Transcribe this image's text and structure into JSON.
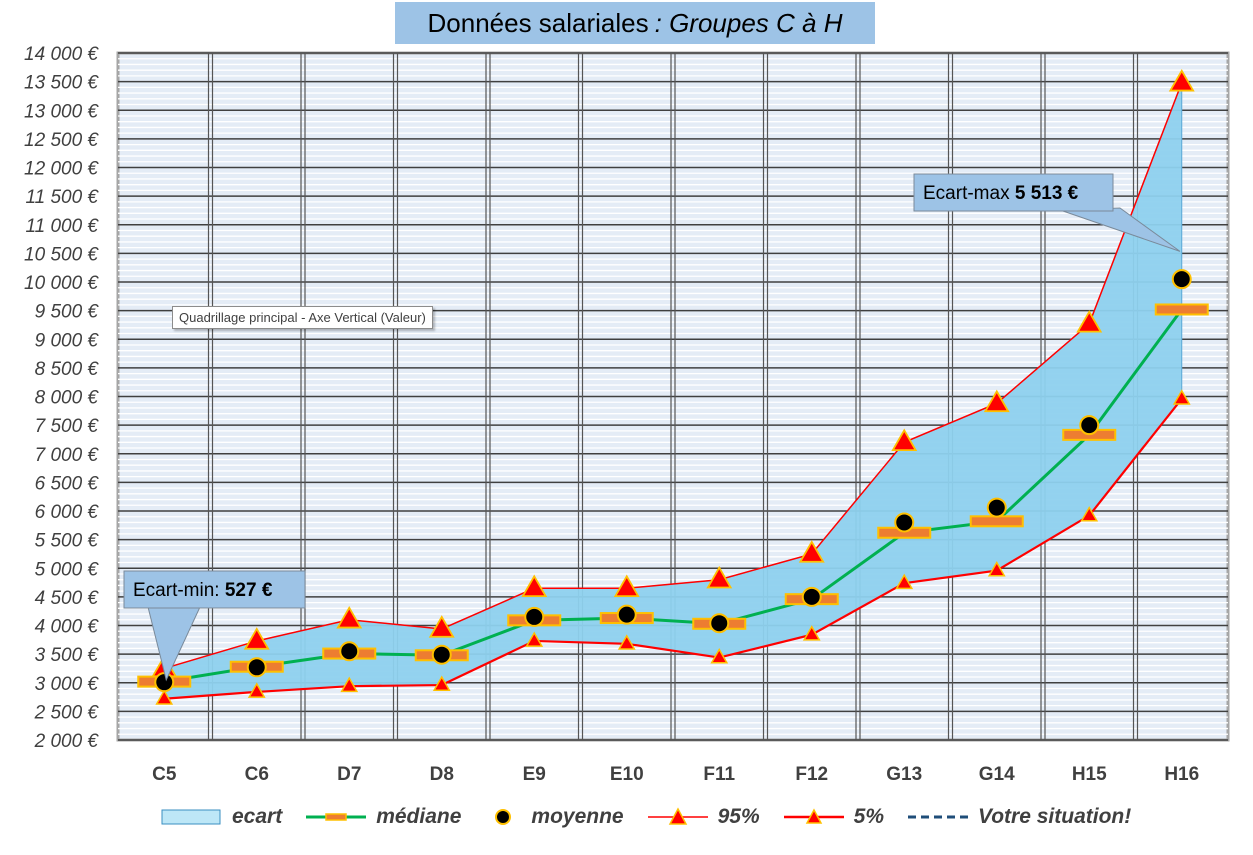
{
  "title": {
    "main": "Données salariales",
    "italic": ": Groupes C à H"
  },
  "tooltip": "Quadrillage principal - Axe Vertical (Valeur)",
  "annotations": {
    "min": {
      "label": "Ecart-min: ",
      "value": "527 €"
    },
    "max": {
      "label": "Ecart-max  ",
      "value": "5 513 €"
    }
  },
  "legend": [
    "ecart",
    "médiane",
    "moyenne",
    "95%",
    "5%",
    "Votre situation!"
  ],
  "colors": {
    "band": "#8ed1ee",
    "median": "#00b050",
    "p95": "#ff0000",
    "p5": "#ff0000",
    "marker_fill": "#ff0000",
    "marker_edge": "#ffc000",
    "median_bar": "#ed7d31",
    "situation": "#1f4e79",
    "callout": "#9dc3e6"
  },
  "chart_data": {
    "type": "line",
    "categories": [
      "C5",
      "C6",
      "D7",
      "D8",
      "E9",
      "E10",
      "F11",
      "F12",
      "G13",
      "G14",
      "H15",
      "H16"
    ],
    "ylim": [
      2000,
      14000
    ],
    "ytick_step": 500,
    "ytick_labels": [
      "2 000 €",
      "2 500 €",
      "3 000 €",
      "3 500 €",
      "4 000 €",
      "4 500 €",
      "5 000 €",
      "5 500 €",
      "6 000 €",
      "6 500 €",
      "7 000 €",
      "7 500 €",
      "8 000 €",
      "8 500 €",
      "9 000 €",
      "9 500 €",
      "10 000 €",
      "10 500 €",
      "11 000 €",
      "11 500 €",
      "12 000 €",
      "12 500 €",
      "13 000 €",
      "13 500 €",
      "14 000 €"
    ],
    "grid": true,
    "legend_position": "bottom",
    "series": [
      {
        "name": "ecart",
        "kind": "band"
      },
      {
        "name": "médiane",
        "values": [
          3020,
          3280,
          3510,
          3480,
          4090,
          4130,
          4030,
          4460,
          5620,
          5820,
          7330,
          9520
        ]
      },
      {
        "name": "moyenne",
        "values": [
          3010,
          3270,
          3550,
          3490,
          4150,
          4190,
          4040,
          4500,
          5800,
          6060,
          7500,
          10050
        ]
      },
      {
        "name": "95%",
        "values": [
          3250,
          3730,
          4100,
          3940,
          4650,
          4650,
          4800,
          5250,
          7200,
          7880,
          9270,
          13480
        ]
      },
      {
        "name": "5%",
        "values": [
          2720,
          2840,
          2940,
          2960,
          3730,
          3680,
          3440,
          3840,
          4740,
          4960,
          5920,
          7960
        ]
      }
    ]
  }
}
